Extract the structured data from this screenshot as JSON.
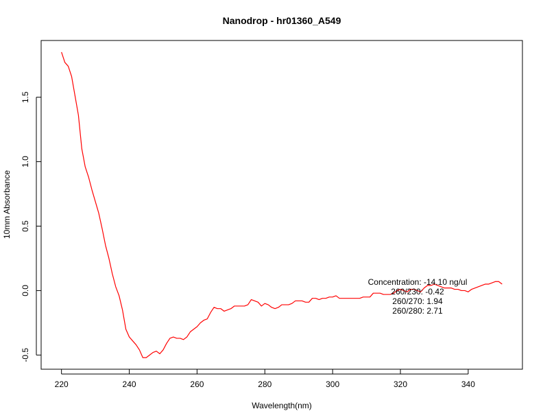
{
  "chart_data": {
    "type": "line",
    "title": "Nanodrop - hr01360_A549",
    "xlabel": "Wavelength(nm)",
    "ylabel": "10mm Absorbance",
    "xlim": [
      214,
      356
    ],
    "ylim": [
      -0.61,
      1.94
    ],
    "xticks": [
      220,
      240,
      260,
      280,
      300,
      320,
      340
    ],
    "yticks": [
      -0.5,
      0.0,
      0.5,
      1.0,
      1.5
    ],
    "grid": false,
    "series": [
      {
        "color": "#ff0000",
        "x": [
          220,
          221,
          222,
          223,
          224,
          225,
          226,
          227,
          228,
          229,
          230,
          231,
          232,
          233,
          234,
          235,
          236,
          237,
          238,
          239,
          240,
          241,
          242,
          243,
          244,
          245,
          246,
          247,
          248,
          249,
          250,
          251,
          252,
          253,
          254,
          255,
          256,
          257,
          258,
          259,
          260,
          261,
          262,
          263,
          264,
          265,
          266,
          267,
          268,
          269,
          270,
          271,
          272,
          273,
          274,
          275,
          276,
          277,
          278,
          279,
          280,
          281,
          282,
          283,
          284,
          285,
          286,
          287,
          288,
          289,
          290,
          291,
          292,
          293,
          294,
          295,
          296,
          297,
          298,
          299,
          300,
          301,
          302,
          303,
          304,
          305,
          306,
          307,
          308,
          309,
          310,
          311,
          312,
          313,
          314,
          315,
          316,
          317,
          318,
          319,
          320,
          321,
          322,
          323,
          324,
          325,
          326,
          327,
          328,
          329,
          330,
          331,
          332,
          333,
          334,
          335,
          336,
          337,
          338,
          339,
          340,
          341,
          342,
          343,
          344,
          345,
          346,
          347,
          348,
          349,
          350
        ],
        "y": [
          1.85,
          1.77,
          1.74,
          1.66,
          1.51,
          1.36,
          1.1,
          0.96,
          0.88,
          0.78,
          0.69,
          0.6,
          0.48,
          0.35,
          0.25,
          0.13,
          0.03,
          -0.04,
          -0.15,
          -0.3,
          -0.36,
          -0.39,
          -0.42,
          -0.46,
          -0.52,
          -0.52,
          -0.5,
          -0.48,
          -0.47,
          -0.49,
          -0.46,
          -0.41,
          -0.37,
          -0.36,
          -0.37,
          -0.37,
          -0.38,
          -0.36,
          -0.32,
          -0.3,
          -0.28,
          -0.25,
          -0.23,
          -0.22,
          -0.17,
          -0.13,
          -0.14,
          -0.14,
          -0.16,
          -0.15,
          -0.14,
          -0.12,
          -0.12,
          -0.12,
          -0.12,
          -0.11,
          -0.07,
          -0.08,
          -0.09,
          -0.12,
          -0.1,
          -0.11,
          -0.13,
          -0.14,
          -0.13,
          -0.11,
          -0.11,
          -0.11,
          -0.1,
          -0.08,
          -0.08,
          -0.08,
          -0.09,
          -0.09,
          -0.06,
          -0.06,
          -0.07,
          -0.06,
          -0.06,
          -0.05,
          -0.05,
          -0.04,
          -0.06,
          -0.06,
          -0.06,
          -0.06,
          -0.06,
          -0.06,
          -0.06,
          -0.05,
          -0.05,
          -0.05,
          -0.02,
          -0.02,
          -0.02,
          -0.03,
          -0.03,
          -0.03,
          -0.02,
          0.0,
          0.01,
          0.0,
          -0.01,
          0.01,
          0.01,
          0.0,
          -0.01,
          0.02,
          0.04,
          0.04,
          0.05,
          0.04,
          0.03,
          0.02,
          0.02,
          0.02,
          0.01,
          0.01,
          0.0,
          0.0,
          -0.01,
          0.01,
          0.02,
          0.03,
          0.04,
          0.05,
          0.05,
          0.06,
          0.07,
          0.07,
          0.05
        ]
      }
    ],
    "annotations": [
      "Concentration: -14.10 ng/ul",
      "260/230: -0.42",
      "260/270: 1.94",
      "260/280: 2.71"
    ]
  }
}
